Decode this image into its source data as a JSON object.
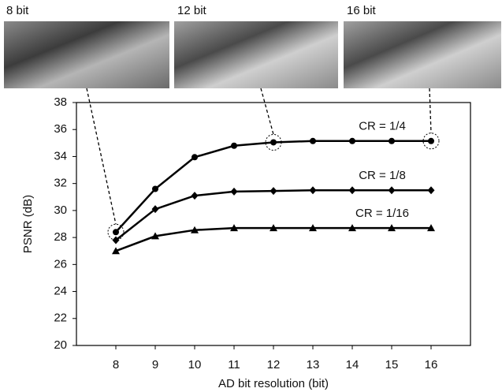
{
  "chart_data": {
    "type": "line",
    "images": [
      {
        "label": "8 bit"
      },
      {
        "label": "12 bit"
      },
      {
        "label": "16 bit"
      }
    ],
    "x_label": "AD bit resolution (bit)",
    "y_label": "PSNR (dB)",
    "x": [
      8,
      9,
      10,
      11,
      12,
      13,
      14,
      15,
      16
    ],
    "xlim": [
      7,
      17
    ],
    "xticks": [
      8,
      9,
      10,
      11,
      12,
      13,
      14,
      15,
      16
    ],
    "ylim": [
      20,
      38
    ],
    "yticks": [
      20,
      22,
      24,
      26,
      28,
      30,
      32,
      34,
      36,
      38
    ],
    "series": [
      {
        "name": "CR = 1/4",
        "color": "#000000",
        "marker": "circle",
        "values": [
          28.4,
          31.6,
          33.95,
          34.8,
          35.05,
          35.15,
          35.15,
          35.15,
          35.15
        ]
      },
      {
        "name": "CR = 1/8",
        "color": "#000000",
        "marker": "diamond",
        "values": [
          27.8,
          30.1,
          31.1,
          31.4,
          31.45,
          31.5,
          31.5,
          31.5,
          31.5
        ]
      },
      {
        "name": "CR = 1/16",
        "color": "#000000",
        "marker": "triangle",
        "values": [
          27.0,
          28.1,
          28.55,
          28.7,
          28.7,
          28.7,
          28.7,
          28.7,
          28.7
        ]
      }
    ]
  }
}
